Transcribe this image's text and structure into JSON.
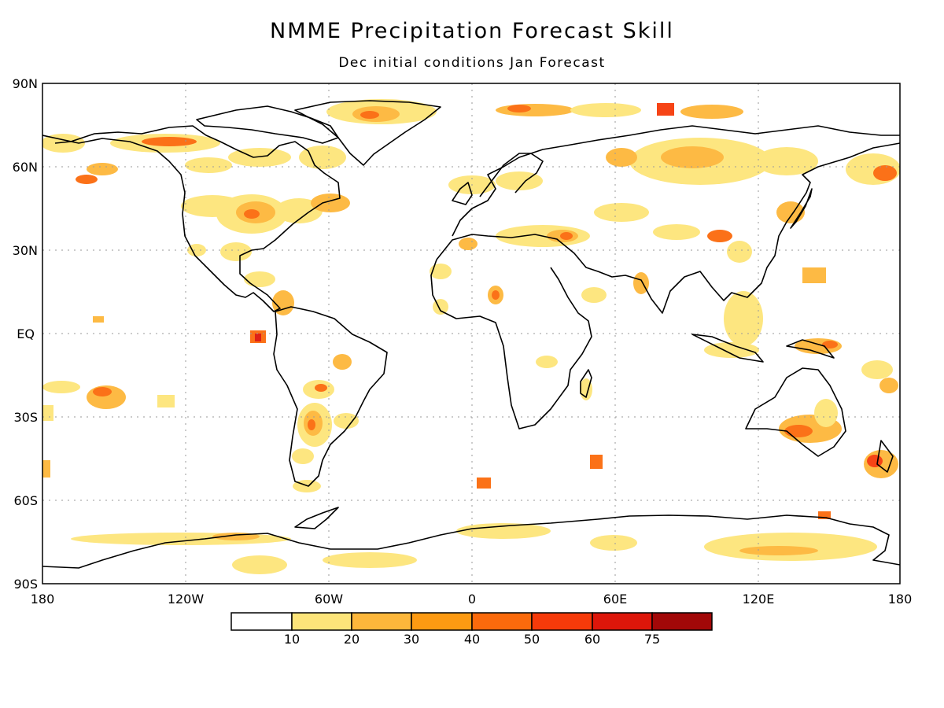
{
  "title": "NMME Precipitation Forecast Skill",
  "subtitle": "Dec initial conditions  Jan Forecast",
  "map": {
    "lat_labels": [
      "90N",
      "60N",
      "30N",
      "EQ",
      "30S",
      "60S",
      "90S"
    ],
    "lon_labels": [
      "180",
      "120W",
      "60W",
      "0",
      "60E",
      "120E",
      "180"
    ],
    "grid": true
  },
  "legend": {
    "thresholds": [
      "10",
      "20",
      "30",
      "40",
      "50",
      "60",
      "75"
    ],
    "colors": [
      "#ffffff",
      "#fde57a",
      "#fdb73b",
      "#fd9a12",
      "#fb6a0c",
      "#f63a0a",
      "#dd160a",
      "#a20808"
    ]
  },
  "palette": {
    "coast": "#000000",
    "grid": "#9a9a9a"
  }
}
